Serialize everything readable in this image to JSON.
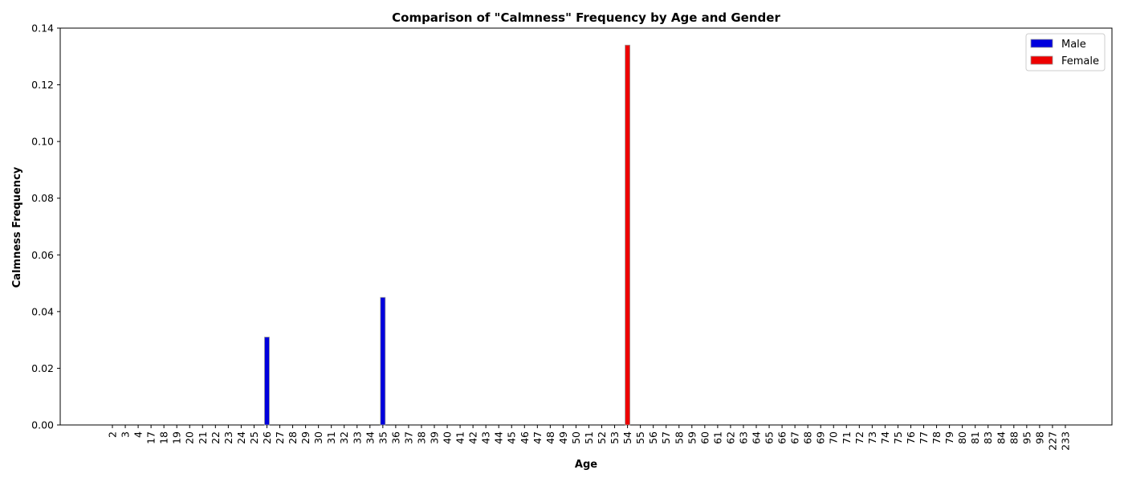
{
  "chart_data": {
    "type": "bar",
    "title": "Comparison of \"Calmness\" Frequency by Age and Gender",
    "xlabel": "Age",
    "ylabel": "Calmness Frequency",
    "ylim": [
      0,
      0.14
    ],
    "yticks": [
      "0.00",
      "0.02",
      "0.04",
      "0.06",
      "0.08",
      "0.10",
      "0.12",
      "0.14"
    ],
    "categories": [
      "2",
      "3",
      "4",
      "17",
      "18",
      "19",
      "20",
      "21",
      "22",
      "23",
      "24",
      "25",
      "26",
      "27",
      "28",
      "29",
      "30",
      "31",
      "32",
      "33",
      "34",
      "35",
      "36",
      "37",
      "38",
      "39",
      "40",
      "41",
      "42",
      "43",
      "44",
      "45",
      "46",
      "47",
      "48",
      "49",
      "50",
      "51",
      "52",
      "53",
      "54",
      "55",
      "56",
      "57",
      "58",
      "59",
      "60",
      "61",
      "62",
      "63",
      "64",
      "65",
      "66",
      "67",
      "68",
      "69",
      "70",
      "71",
      "72",
      "73",
      "74",
      "75",
      "76",
      "77",
      "78",
      "79",
      "80",
      "81",
      "83",
      "84",
      "88",
      "95",
      "98",
      "227",
      "233"
    ],
    "series": [
      {
        "name": "Male",
        "color": "#0000dd",
        "values": {
          "26": 0.031,
          "35": 0.045
        }
      },
      {
        "name": "Female",
        "color": "#ee0000",
        "values": {
          "54": 0.134
        }
      }
    ],
    "legend": "top-right",
    "grid": false
  }
}
